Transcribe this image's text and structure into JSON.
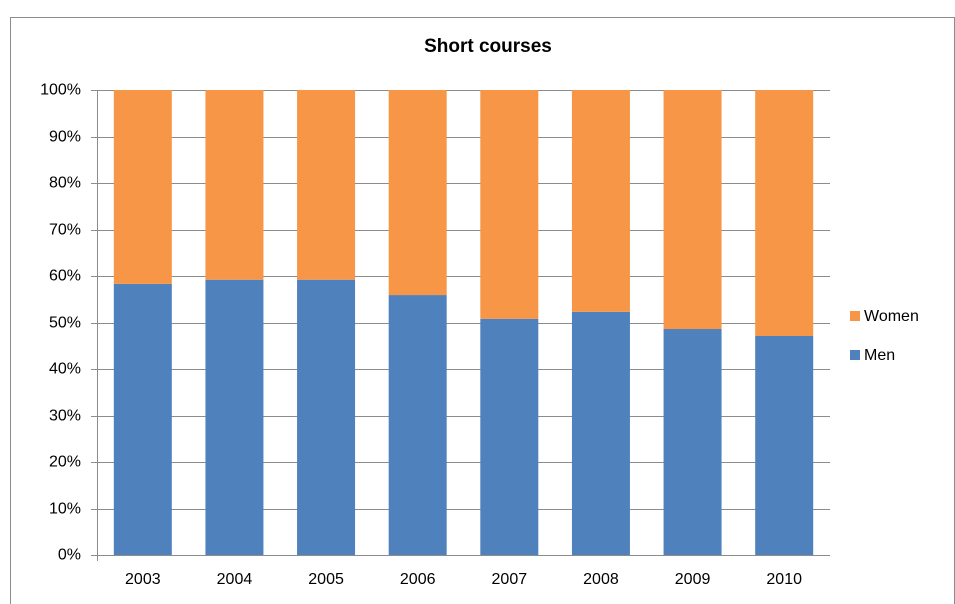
{
  "chart_data": {
    "type": "stacked_bar",
    "title": "Short courses",
    "categories": [
      "2003",
      "2004",
      "2005",
      "2006",
      "2007",
      "2008",
      "2009",
      "2010"
    ],
    "series": [
      {
        "name": "Men",
        "color": "#4f81bd",
        "values": [
          58.3,
          59.2,
          59.2,
          55.9,
          50.8,
          52.3,
          48.6,
          47.1
        ]
      },
      {
        "name": "Women",
        "color": "#f79646",
        "values": [
          41.7,
          40.8,
          40.8,
          44.1,
          49.2,
          47.7,
          51.4,
          52.9
        ]
      }
    ],
    "ylim": [
      0,
      100
    ],
    "yticks": [
      {
        "value": 0,
        "label": "0%"
      },
      {
        "value": 10,
        "label": "10%"
      },
      {
        "value": 20,
        "label": "20%"
      },
      {
        "value": 30,
        "label": "30%"
      },
      {
        "value": 40,
        "label": "40%"
      },
      {
        "value": 50,
        "label": "50%"
      },
      {
        "value": 60,
        "label": "60%"
      },
      {
        "value": 70,
        "label": "70%"
      },
      {
        "value": 80,
        "label": "80%"
      },
      {
        "value": 90,
        "label": "90%"
      },
      {
        "value": 100,
        "label": "100%"
      }
    ],
    "grid": true,
    "legend": "right"
  }
}
